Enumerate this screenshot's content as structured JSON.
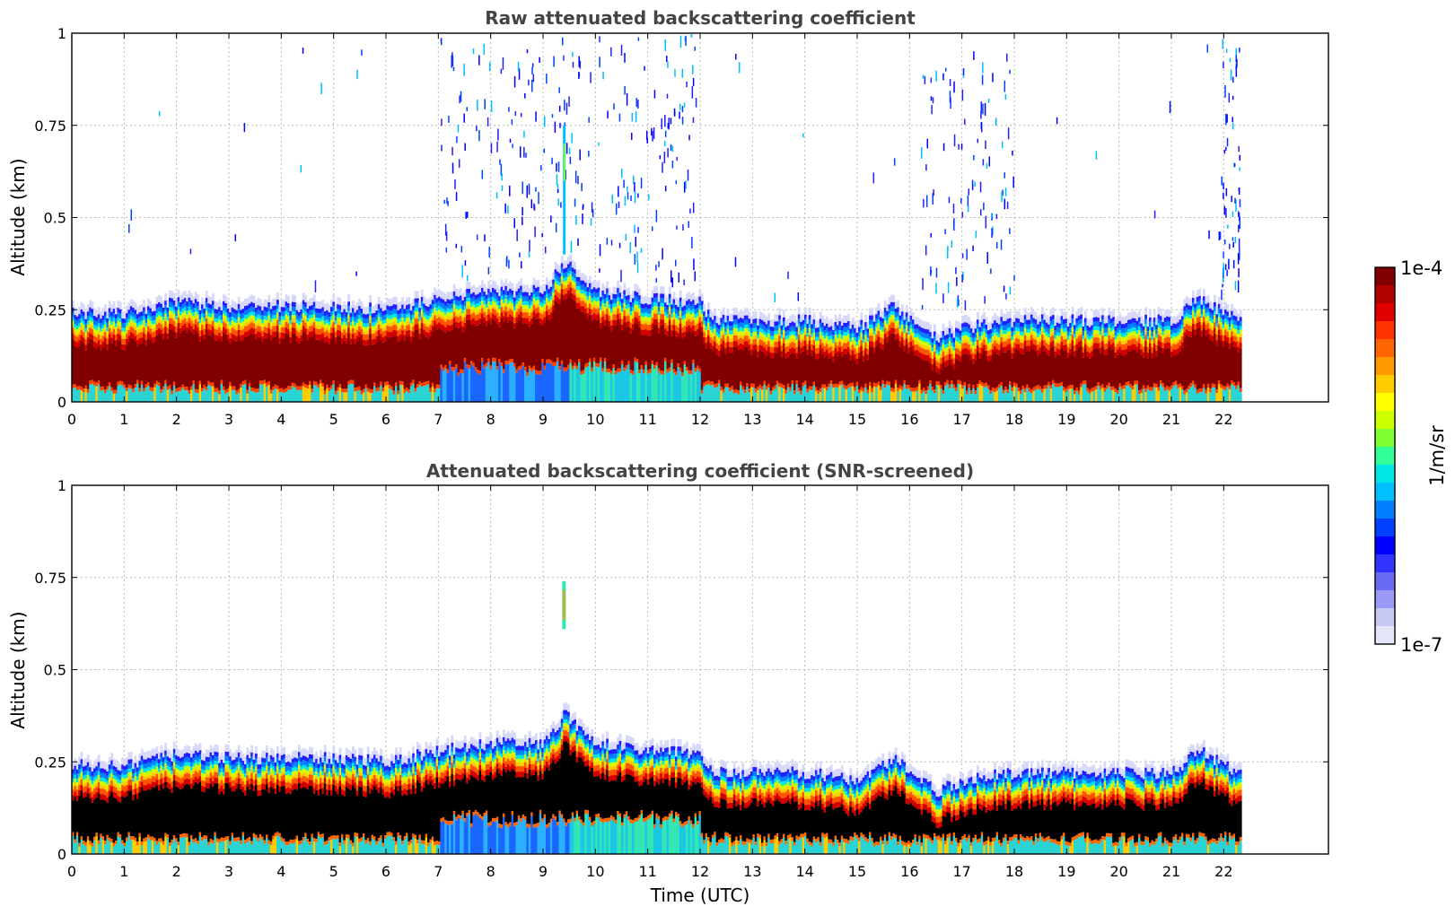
{
  "chart_data": [
    {
      "type": "heatmap",
      "title": "Raw attenuated backscattering coefficient",
      "xlabel": "",
      "ylabel": "Altitude (km)",
      "xlim": [
        0,
        24
      ],
      "ylim": [
        0,
        1
      ],
      "x_ticks": [
        "0",
        "1",
        "2",
        "3",
        "4",
        "5",
        "6",
        "7",
        "8",
        "9",
        "10",
        "11",
        "12",
        "13",
        "14",
        "15",
        "16",
        "17",
        "18",
        "19",
        "20",
        "21",
        "22"
      ],
      "y_ticks": [
        "0",
        "0.25",
        "0.5",
        "0.75",
        "1"
      ],
      "grid": true,
      "data_end_time": 22.3,
      "boundary_layer_top_km": [
        [
          0,
          0.24
        ],
        [
          1,
          0.24
        ],
        [
          2,
          0.27
        ],
        [
          3,
          0.26
        ],
        [
          4,
          0.26
        ],
        [
          5,
          0.26
        ],
        [
          6,
          0.25
        ],
        [
          7,
          0.28
        ],
        [
          8,
          0.3
        ],
        [
          9,
          0.3
        ],
        [
          9.4,
          0.38
        ],
        [
          10,
          0.3
        ],
        [
          11,
          0.28
        ],
        [
          12,
          0.27
        ],
        [
          12.2,
          0.22
        ],
        [
          13,
          0.22
        ],
        [
          14,
          0.22
        ],
        [
          15,
          0.2
        ],
        [
          15.7,
          0.26
        ],
        [
          16.5,
          0.17
        ],
        [
          17,
          0.2
        ],
        [
          18,
          0.22
        ],
        [
          19,
          0.22
        ],
        [
          20,
          0.22
        ],
        [
          21,
          0.22
        ],
        [
          21.5,
          0.28
        ],
        [
          22.3,
          0.22
        ]
      ],
      "colormap": "jet, log scale",
      "noise": "scattered above boundary layer, mainly 7–12 UTC, 16–18 UTC and near 22 UTC"
    },
    {
      "type": "heatmap",
      "title": "Attenuated backscattering coefficient (SNR-screened)",
      "xlabel": "Time (UTC)",
      "ylabel": "Altitude (km)",
      "xlim": [
        0,
        24
      ],
      "ylim": [
        0,
        1
      ],
      "x_ticks": [
        "0",
        "1",
        "2",
        "3",
        "4",
        "5",
        "6",
        "7",
        "8",
        "9",
        "10",
        "11",
        "12",
        "13",
        "14",
        "15",
        "16",
        "17",
        "18",
        "19",
        "20",
        "21",
        "22"
      ],
      "y_ticks": [
        "0",
        "0.25",
        "0.5",
        "0.75",
        "1"
      ],
      "grid": true,
      "data_end_time": 22.3,
      "saturated_core_color": "#000000",
      "isolated_features": [
        {
          "time": 9.4,
          "altitude_km": [
            0.61,
            0.74
          ]
        }
      ]
    }
  ],
  "colorbar": {
    "label": "1/m/sr",
    "max_label": "1e-4",
    "min_label": "1e-7",
    "scale": "log",
    "colors": [
      "#e6e6fb",
      "#c8c8f5",
      "#9b9bf5",
      "#6a6af5",
      "#3333ff",
      "#0000ff",
      "#0040ff",
      "#0080ff",
      "#00bfff",
      "#00e5e5",
      "#33ff99",
      "#80ff33",
      "#ccff00",
      "#ffff00",
      "#ffcc00",
      "#ff9900",
      "#ff6600",
      "#ff3300",
      "#e00000",
      "#b00000",
      "#800000"
    ]
  }
}
